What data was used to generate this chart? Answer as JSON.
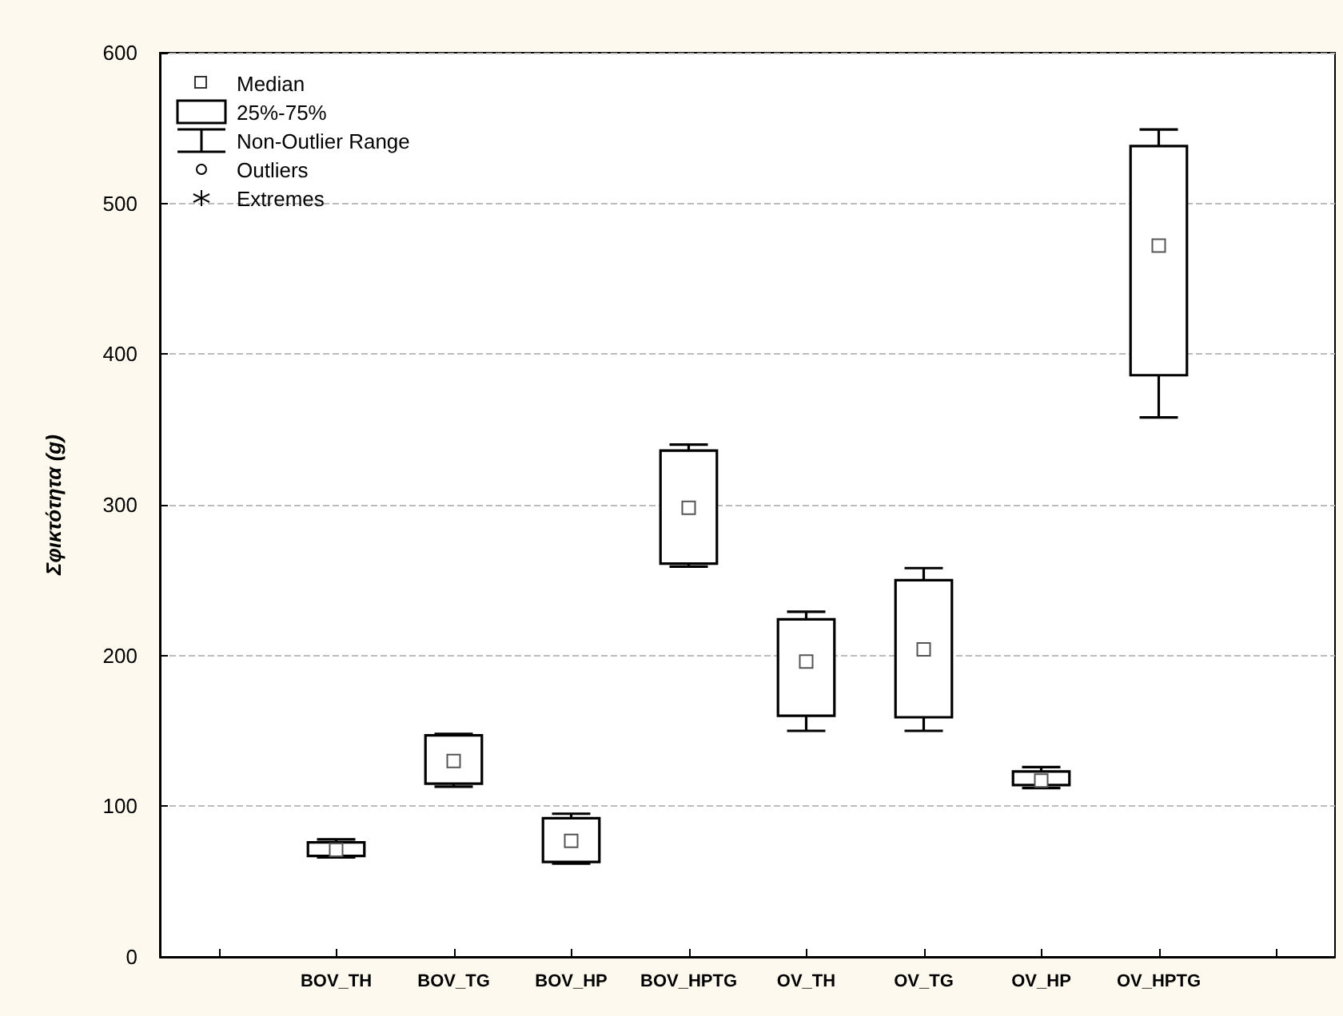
{
  "chart_data": {
    "type": "box",
    "ylabel": "Σφικτότητα (g)",
    "categories": [
      null,
      "BOV_TH",
      "BOV_TG",
      "BOV_HP",
      "BOV_HPTG",
      "OV_TH",
      "OV_TG",
      "OV_HP",
      "OV_HPTG",
      null
    ],
    "boxes": [
      null,
      {
        "low": 66,
        "q1": 67,
        "median": 71,
        "q3": 76,
        "high": 78
      },
      {
        "low": 113,
        "q1": 115,
        "median": 130,
        "q3": 147,
        "high": 148
      },
      {
        "low": 62,
        "q1": 63,
        "median": 77,
        "q3": 92,
        "high": 95
      },
      {
        "low": 259,
        "q1": 261,
        "median": 298,
        "q3": 336,
        "high": 340
      },
      {
        "low": 150,
        "q1": 160,
        "median": 196,
        "q3": 224,
        "high": 229
      },
      {
        "low": 150,
        "q1": 159,
        "median": 204,
        "q3": 250,
        "high": 258
      },
      {
        "low": 112,
        "q1": 114,
        "median": 117,
        "q3": 123,
        "high": 126
      },
      {
        "low": 358,
        "q1": 386,
        "median": 472,
        "q3": 538,
        "high": 549
      },
      null
    ],
    "color": "#000000",
    "ylim": [
      0,
      600
    ],
    "yticks": [
      0,
      100,
      200,
      300,
      400,
      500,
      600
    ],
    "grid": "y",
    "annotations": [
      "Median",
      "25%-75%",
      "Non-Outlier Range",
      "Outliers",
      "Extremes"
    ]
  }
}
